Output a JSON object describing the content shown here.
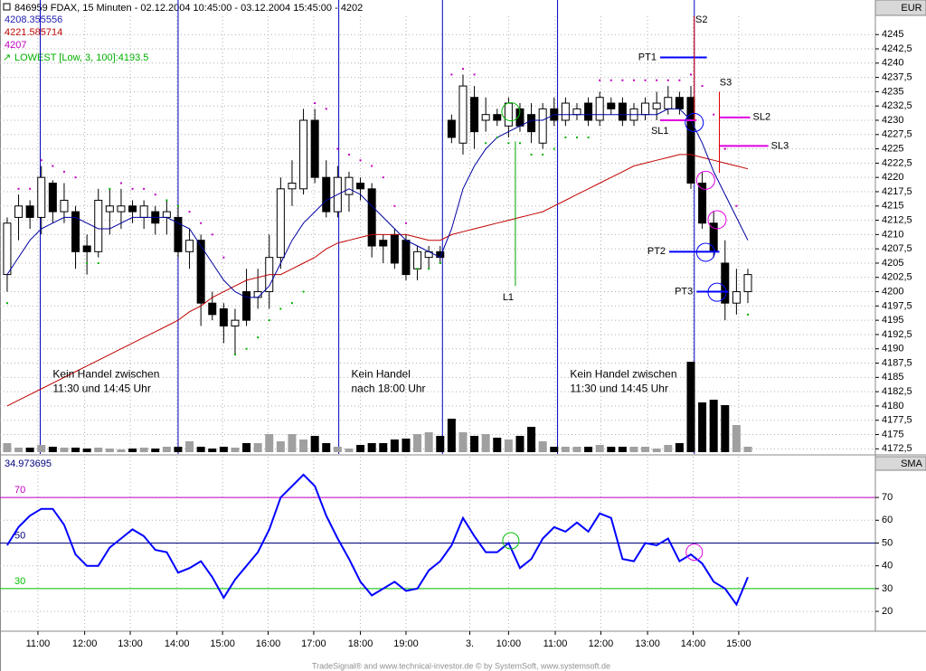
{
  "chart_data": {
    "type": "candlestick",
    "title": "846959  FDAX, 15 Minuten - 02.12.2004 10:45:00 - 03.12.2004 15:45:00 - 4202",
    "currency": "EUR",
    "footer": "TradeSignal® and www.technical-investor.de © by SystemSoft, www.systemsoft.de",
    "readouts": [
      {
        "text": "4208.355556",
        "color": "#2020b0"
      },
      {
        "text": "4221.585714",
        "color": "#c00000"
      },
      {
        "text": "4207",
        "color": "#c000c0"
      },
      {
        "text": "LOWEST [Low, 3, 100]:4193.5",
        "color": "#00b000"
      }
    ],
    "xlim": [
      -0.63,
      76.19
    ],
    "xticks": [
      {
        "value": 2.7,
        "label": "11:00"
      },
      {
        "value": 6.8,
        "label": "12:00"
      },
      {
        "value": 10.8,
        "label": "13:00"
      },
      {
        "value": 14.9,
        "label": "14:00"
      },
      {
        "value": 18.9,
        "label": "15:00"
      },
      {
        "value": 22.9,
        "label": "16:00"
      },
      {
        "value": 26.9,
        "label": "17:00"
      },
      {
        "value": 31.0,
        "label": "18:00"
      },
      {
        "value": 35.0,
        "label": "19:00"
      },
      {
        "value": 40.6,
        "label": "3."
      },
      {
        "value": 44.0,
        "label": "10:00"
      },
      {
        "value": 48.1,
        "label": "11:00"
      },
      {
        "value": 52.1,
        "label": "12:00"
      },
      {
        "value": 56.2,
        "label": "13:00"
      },
      {
        "value": 60.2,
        "label": "14:00"
      },
      {
        "value": 64.2,
        "label": "15:00"
      }
    ],
    "ylim": [
      4171.6,
      4248.2
    ],
    "yticks": [
      {
        "value": 4172.5,
        "label": "4172,5"
      },
      4175,
      {
        "value": 4177.5,
        "label": "4177,5"
      },
      4180,
      {
        "value": 4182.5,
        "label": "4182,5"
      },
      4185,
      {
        "value": 4187.5,
        "label": "4187,5"
      },
      4190,
      {
        "value": 4192.5,
        "label": "4192,5"
      },
      4195,
      {
        "value": 4197.5,
        "label": "4197,5"
      },
      4200,
      {
        "value": 4202.5,
        "label": "4202,5"
      },
      4205,
      {
        "value": 4207.5,
        "label": "4207,5"
      },
      4210,
      {
        "value": 4212.5,
        "label": "4212,5"
      },
      4215,
      {
        "value": 4217.5,
        "label": "4217,5"
      },
      4220,
      {
        "value": 4222.5,
        "label": "4222,5"
      },
      4225,
      {
        "value": 4227.5,
        "label": "4227,5"
      },
      4230,
      {
        "value": 4232.5,
        "label": "4232,5"
      },
      4235,
      {
        "value": 4237.5,
        "label": "4237,5"
      },
      4240,
      {
        "value": 4242.5,
        "label": "4242,5"
      },
      4245
    ],
    "grid": true,
    "up_color": "#ffffff",
    "down_color": "#000000",
    "volume_colors": {
      "down": "#000000",
      "up": "#a0a0a0"
    },
    "open": [
      4203,
      4213,
      4215,
      4213,
      4219,
      4214,
      4214,
      4208,
      4207,
      4214,
      4214,
      4215,
      4213,
      4214,
      4213,
      4213,
      4207,
      4209,
      4198,
      4197,
      4194,
      4200,
      4199,
      4200,
      4206,
      4218,
      4218,
      4230,
      4220,
      4214,
      4217,
      4219,
      4218,
      4209,
      4210,
      4209,
      4204,
      4206,
      4207,
      4230,
      4226,
      4234,
      4230,
      4231,
      4229,
      4232,
      4231,
      4226,
      4232,
      4230,
      4231,
      4233,
      4230,
      4233,
      4233,
      4230,
      4231,
      4232,
      4232,
      4234,
      4234,
      4219,
      4212,
      4205,
      4198,
      4200
    ],
    "high": [
      4213,
      4217,
      4216,
      4222,
      4219.5,
      4219,
      4215,
      4210,
      4218,
      4218,
      4218,
      4216,
      4216,
      4215,
      4216,
      4215,
      4211,
      4210,
      4200,
      4198,
      4197,
      4204,
      4204,
      4210,
      4220,
      4223,
      4232,
      4232,
      4223,
      4222,
      4221,
      4220,
      4219,
      4210,
      4211,
      4210,
      4208,
      4208,
      4208,
      4231,
      4238,
      4236,
      4234,
      4232,
      4234,
      4233,
      4233,
      4233,
      4234,
      4234,
      4233,
      4234,
      4235,
      4234,
      4234,
      4233,
      4234,
      4235,
      4236,
      4235,
      4236,
      4221,
      4214,
      4209,
      4204,
      4204
    ],
    "low": [
      4200,
      4209,
      4211,
      4210,
      4212,
      4212,
      4204,
      4203,
      4206,
      4210,
      4211,
      4212,
      4211,
      4210,
      4210,
      4206,
      4204,
      4194,
      4195,
      4191,
      4189,
      4194,
      4197,
      4197,
      4204,
      4215,
      4217,
      4219,
      4213,
      4213,
      4214,
      4216,
      4206,
      4205,
      4204,
      4202,
      4202,
      4204,
      4205,
      4226,
      4224,
      4225,
      4228,
      4229,
      4227,
      4228,
      4226,
      4225,
      4229,
      4229,
      4230,
      4229,
      4229,
      4231,
      4229,
      4229,
      4230,
      4230,
      4231,
      4231,
      4218,
      4211,
      4206,
      4195,
      4196,
      4198
    ],
    "close": [
      4212,
      4215,
      4213,
      4220,
      4214,
      4216,
      4207,
      4207,
      4216,
      4215,
      4215,
      4214,
      4215,
      4212,
      4214,
      4207,
      4209,
      4198,
      4196,
      4194,
      4195,
      4195,
      4200,
      4206,
      4218,
      4219,
      4230,
      4220,
      4214,
      4220,
      4220,
      4218,
      4208,
      4208,
      4205,
      4203,
      4207,
      4207,
      4206,
      4227,
      4236,
      4228,
      4231,
      4230,
      4233,
      4229,
      4228,
      4232,
      4230,
      4233,
      4232,
      4230,
      4234,
      4232,
      4230,
      4232,
      4233,
      4233,
      4234,
      4232,
      4219,
      4212,
      4207,
      4198,
      4200,
      4203
    ],
    "volume": [
      10,
      5,
      5,
      8,
      6,
      5,
      5,
      4,
      5,
      4,
      3,
      4,
      5,
      4,
      6,
      6,
      12,
      6,
      4,
      6,
      5,
      10,
      10,
      20,
      12,
      20,
      14,
      18,
      10,
      6,
      4,
      8,
      10,
      10,
      14,
      15,
      20,
      22,
      18,
      37,
      22,
      18,
      20,
      16,
      14,
      18,
      28,
      12,
      6,
      6,
      6,
      6,
      8,
      6,
      6,
      6,
      6,
      4,
      8,
      10,
      100,
      55,
      58,
      52,
      30,
      6
    ],
    "ma_fast": {
      "color": "#0000a0",
      "values": [
        4203,
        4206,
        4209,
        4211,
        4212,
        4213,
        4213,
        4212,
        4211,
        4211,
        4212,
        4213,
        4213,
        4213,
        4213,
        4212,
        4211,
        4208,
        4205,
        4202,
        4200,
        4199,
        4199,
        4201,
        4205,
        4209,
        4212,
        4214,
        4216,
        4217,
        4218,
        4217,
        4215,
        4213,
        4211,
        4209,
        4208,
        4207,
        4206,
        4211,
        4218,
        4222,
        4225,
        4227,
        4228,
        4229,
        4230,
        4230,
        4231,
        4231,
        4231,
        4231,
        4231,
        4231,
        4231,
        4231,
        4231,
        4231,
        4232,
        4232,
        4230,
        4226,
        4221,
        4217,
        4213,
        4209
      ]
    },
    "ma_slow": {
      "color": "#c00000",
      "values": [
        4180,
        4181,
        4182,
        4183,
        4184,
        4185,
        4186,
        4187,
        4188,
        4189,
        4190,
        4191,
        4192,
        4193,
        4194,
        4195,
        4196.5,
        4197.5,
        4199,
        4200,
        4201,
        4202,
        4202.5,
        4203,
        4203,
        4204,
        4205,
        4206,
        4207.5,
        4208.5,
        4209,
        4209.5,
        4210,
        4210,
        4210,
        4210,
        4209.5,
        4209,
        4209,
        4210,
        4210.5,
        4211,
        4211.5,
        4212,
        4212.5,
        4213,
        4213.5,
        4214,
        4215,
        4216,
        4217,
        4218,
        4219,
        4220,
        4221,
        4222,
        4222.5,
        4223,
        4223.5,
        4224,
        4224,
        4223.5,
        4223,
        4222.5,
        4222,
        4221.5
      ]
    },
    "sar": {
      "above_color": "#c000c0",
      "below_color": "#00b000",
      "values": [
        4198,
        4218,
        4218,
        4223,
        4222,
        4221,
        4220,
        4205,
        4205,
        4218,
        4219,
        4218,
        4218,
        4217,
        4216,
        4215,
        4214,
        4212,
        4210,
        4206,
        4189,
        4190,
        4192,
        4195,
        4197,
        4198,
        4200,
        4233,
        4232,
        4225,
        4224,
        4223,
        4222,
        4220,
        4215,
        4212,
        4204,
        4204,
        4205,
        4238,
        4239,
        4238,
        4226,
        4227,
        4226,
        4226,
        4224,
        4224,
        4225,
        4227,
        4227,
        4227,
        4237,
        4237,
        4237,
        4237,
        4237,
        4237,
        4237,
        4237,
        4238,
        4236,
        4231,
        4225,
        4215,
        4196
      ]
    },
    "sessions": {
      "color": "#0000c0",
      "x": [
        2.9,
        15.0,
        29.1,
        38.2,
        48.3,
        60.3
      ]
    },
    "notes": [
      {
        "x": 4.0,
        "value": 4185.5,
        "lines": [
          "Kein Handel zwischen",
          "11:30 und 14:45 Uhr"
        ]
      },
      {
        "x": 30.2,
        "value": 4185.5,
        "lines": [
          "Kein Handel",
          "nach 18:00 Uhr"
        ]
      },
      {
        "x": 49.4,
        "value": 4185.5,
        "lines": [
          "Kein Handel zwischen",
          "11:30 und 14:45 Uhr"
        ]
      }
    ],
    "levels": [
      {
        "label": "PT1",
        "value": 4241,
        "x": [
          57.3,
          61.4
        ],
        "color": "#0000ff",
        "side": "left"
      },
      {
        "label": "SL1",
        "value": 4230,
        "x": [
          57.3,
          60.5
        ],
        "color": "#e000e0",
        "side": "below"
      },
      {
        "label": "SL2",
        "value": 4230.5,
        "x": [
          62.5,
          65.2
        ],
        "color": "#e000e0",
        "side": "right"
      },
      {
        "label": "SL3",
        "value": 4225.5,
        "x": [
          62.5,
          66.8
        ],
        "color": "#e000e0",
        "side": "right"
      },
      {
        "label": "PT2",
        "value": 4207,
        "x": [
          58.1,
          62.5
        ],
        "color": "#0000ff",
        "side": "left"
      },
      {
        "label": "PT3",
        "value": 4200,
        "x": [
          60.5,
          63.3
        ],
        "color": "#0000ff",
        "side": "left"
      }
    ],
    "markers": [
      {
        "label": "S2",
        "x": 60.3,
        "range": [
          4248.2,
          4230
        ],
        "color": "#e00000",
        "side": "top"
      },
      {
        "label": "S3",
        "x": 62.5,
        "range": [
          4235,
          4220.8
        ],
        "color": "#e00000",
        "side": "top"
      },
      {
        "label": "L1",
        "x": 44.6,
        "range": [
          4226.3,
          4201
        ],
        "color": "#00a000",
        "side": "bottom"
      }
    ],
    "circles": [
      {
        "x": 44.2,
        "value": 4231.5,
        "color": "#00c000"
      },
      {
        "x": 60.3,
        "value": 4229.6,
        "color": "#0000ff"
      },
      {
        "x": 61.3,
        "value": 4219.5,
        "color": "#e000e0"
      },
      {
        "x": 62.3,
        "value": 4212.6,
        "color": "#e000e0"
      },
      {
        "x": 61.3,
        "value": 4206.9,
        "color": "#0000ff"
      },
      {
        "x": 62.3,
        "value": 4199.9,
        "color": "#0000ff"
      }
    ],
    "rsi": {
      "type": "line",
      "label": "SMA",
      "readout": "34.973695",
      "color": "#0000ff",
      "ylim": [
        11.3,
        87.9
      ],
      "yticks": [
        20,
        30,
        40,
        50,
        60,
        70
      ],
      "levels": [
        {
          "value": 70,
          "color": "#c000c0"
        },
        {
          "value": 50,
          "color": "#000080"
        },
        {
          "value": 30,
          "color": "#00c000"
        }
      ],
      "values": [
        49,
        57,
        62,
        65,
        65,
        58,
        45,
        40,
        40,
        48,
        52,
        56,
        53,
        47,
        46,
        37,
        39,
        42,
        35,
        26,
        34,
        40,
        46,
        56,
        70,
        75,
        80,
        75,
        62,
        52,
        43,
        33,
        27,
        30,
        33,
        29,
        30,
        38,
        42,
        49,
        61,
        53,
        46,
        46,
        50,
        39,
        43,
        52,
        57,
        55,
        59,
        55,
        63,
        61,
        43,
        42,
        50,
        49,
        52,
        42,
        45,
        41,
        33,
        30,
        23,
        35
      ],
      "circles": [
        {
          "x": 44.2,
          "value": 51,
          "color": "#00c000"
        },
        {
          "x": 60.3,
          "value": 46,
          "color": "#e000e0"
        }
      ]
    }
  }
}
